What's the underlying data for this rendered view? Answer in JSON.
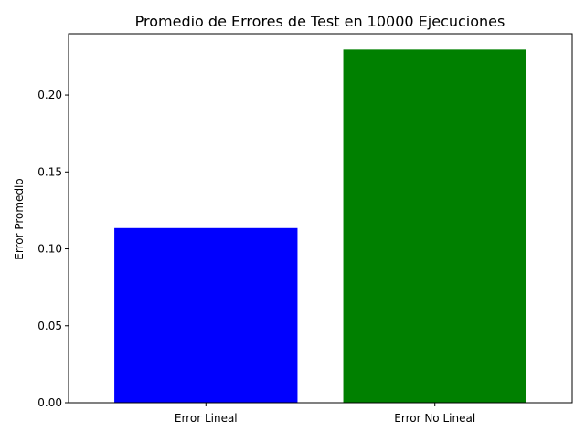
{
  "chart_data": {
    "type": "bar",
    "title": "Promedio de Errores de Test en 10000 Ejecuciones",
    "xlabel": "",
    "ylabel": "Error Promedio",
    "categories": [
      "Error Lineal",
      "Error No Lineal"
    ],
    "values": [
      0.1135,
      0.2295
    ],
    "colors": [
      "#0000ff",
      "#008000"
    ],
    "ylim": [
      0,
      0.2398
    ],
    "yticks": [
      0.0,
      0.05,
      0.1,
      0.15,
      0.2
    ],
    "ytick_labels": [
      "0.00",
      "0.05",
      "0.10",
      "0.15",
      "0.20"
    ],
    "grid": false,
    "legend": "none"
  }
}
